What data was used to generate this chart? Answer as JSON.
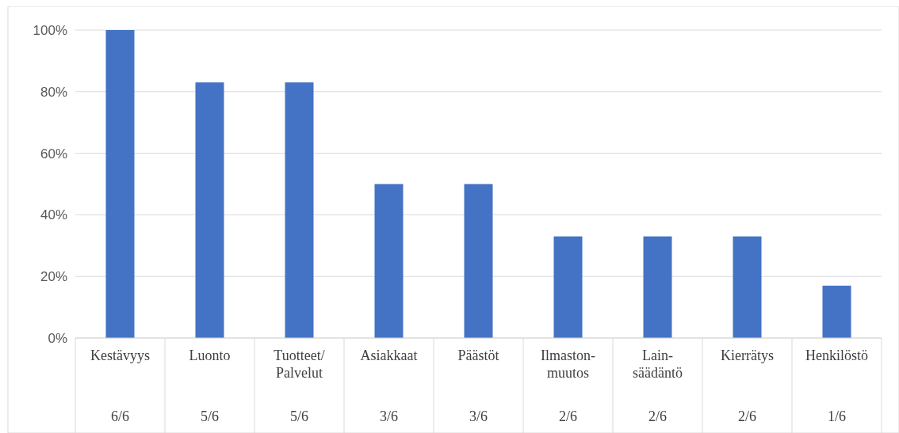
{
  "chart_data": {
    "type": "bar",
    "categories": [
      "Kestävyys\n6/6",
      "Luonto\n5/6",
      "Tuotteet/\nPalvelut\n5/6",
      "Asiakkaat\n3/6",
      "Päästöt\n3/6",
      "Ilmaston-\nmuutos\n2/6",
      "Lain-\nsäädäntö\n2/6",
      "Kierrätys\n2/6",
      "Henkilöstö\n1/6"
    ],
    "values": [
      100,
      83,
      83,
      50,
      50,
      33,
      33,
      33,
      17
    ],
    "color": "#4472c4",
    "ylim": [
      0,
      100
    ],
    "yticks": [
      {
        "value": 0,
        "label": "0%"
      },
      {
        "value": 20,
        "label": "20%"
      },
      {
        "value": 40,
        "label": "40%"
      },
      {
        "value": 60,
        "label": "60%"
      },
      {
        "value": 80,
        "label": "80%"
      },
      {
        "value": 100,
        "label": "100%"
      }
    ],
    "grid": "y"
  }
}
